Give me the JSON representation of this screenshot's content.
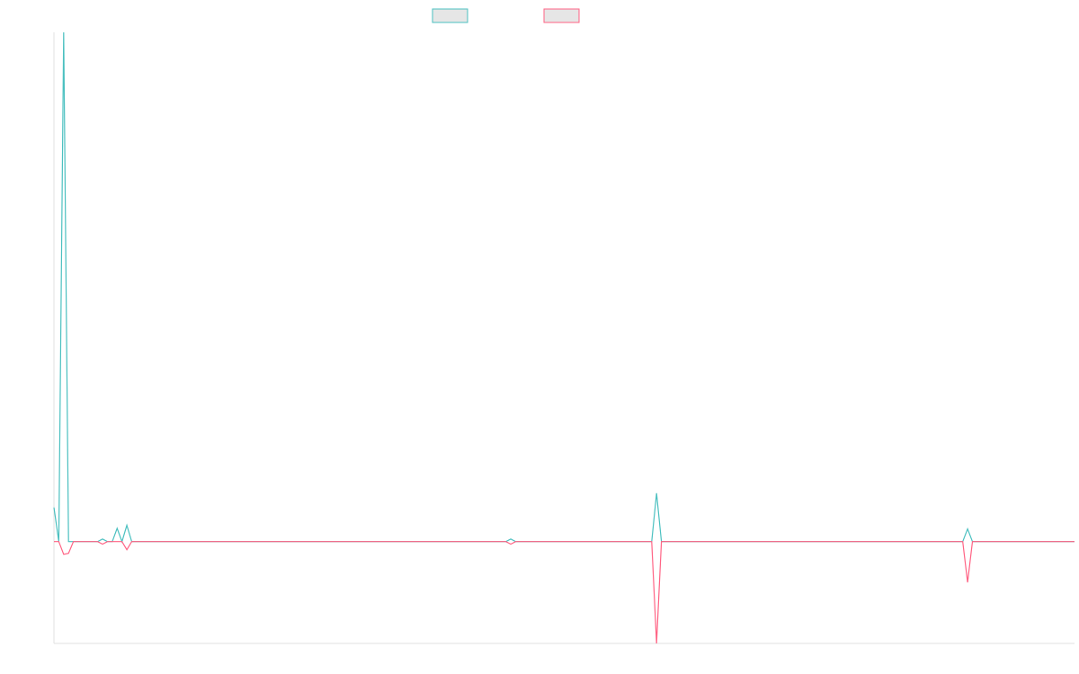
{
  "chart_data": {
    "type": "line",
    "x": [
      0,
      1,
      2,
      3,
      4,
      9,
      10,
      11,
      12,
      13,
      14,
      15,
      16,
      93,
      94,
      95,
      123,
      124,
      125,
      187,
      188,
      189,
      210
    ],
    "xlim": [
      0,
      210
    ],
    "ylim": [
      -20,
      100
    ],
    "series": [
      {
        "color": "#4bc0c0",
        "values": [
          6.7,
          0,
          100,
          0,
          0,
          0,
          0.5,
          0,
          0,
          2.6,
          0,
          3.2,
          0,
          0,
          0.5,
          0,
          0,
          9.5,
          0,
          0,
          2.5,
          0,
          0
        ]
      },
      {
        "color": "#ff6384",
        "values": [
          0,
          0,
          -2.5,
          -2.3,
          0,
          0,
          -0.5,
          0,
          0,
          0,
          0,
          -1.6,
          0,
          0,
          -0.5,
          0,
          0,
          -20,
          0,
          0,
          -8,
          0,
          0
        ]
      }
    ]
  }
}
